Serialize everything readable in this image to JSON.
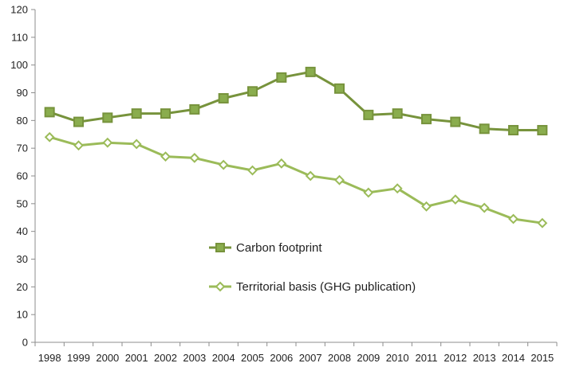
{
  "chart_data": {
    "type": "line",
    "x": [
      "1998",
      "1999",
      "2000",
      "2001",
      "2002",
      "2003",
      "2004",
      "2005",
      "2006",
      "2007",
      "2008",
      "2009",
      "2010",
      "2011",
      "2012",
      "2013",
      "2014",
      "2015"
    ],
    "ylim": [
      0,
      120
    ],
    "yticks": [
      0,
      10,
      20,
      30,
      40,
      50,
      60,
      70,
      80,
      90,
      100,
      110,
      120
    ],
    "grid": false,
    "legend_position": "center",
    "series": [
      {
        "name": "Carbon footprint",
        "color": "#77933c",
        "marker": "filled-square",
        "values": [
          83,
          79.5,
          81,
          82.5,
          82.5,
          84,
          88,
          90.5,
          95.5,
          97.5,
          91.5,
          82,
          82.5,
          80.5,
          79.5,
          77,
          76.5,
          76.5
        ]
      },
      {
        "name": "Territorial basis (GHG publication)",
        "color": "#9bbb59",
        "marker": "hollow-diamond",
        "values": [
          74,
          71,
          72,
          71.5,
          67,
          66.5,
          64,
          62,
          64.5,
          60,
          58.5,
          54,
          55.5,
          49,
          51.5,
          48.5,
          44.5,
          43
        ]
      }
    ]
  }
}
